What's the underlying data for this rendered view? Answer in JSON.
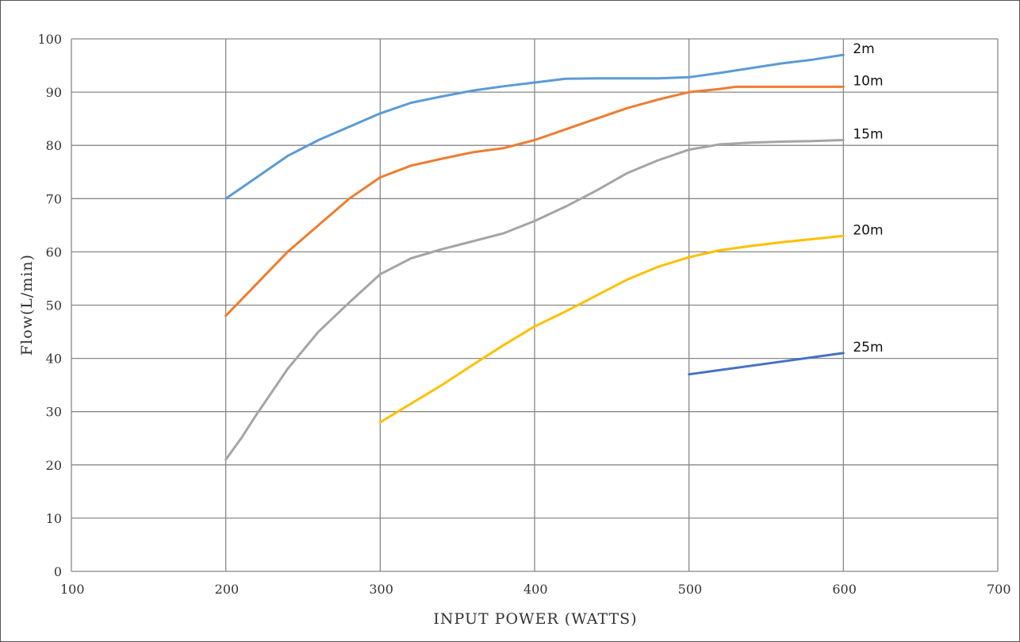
{
  "chart_data": {
    "type": "line",
    "xlabel": "INPUT POWER (WATTS)",
    "ylabel": "Flow(L/min)",
    "xlim": [
      100,
      700
    ],
    "ylim": [
      0,
      100
    ],
    "xticks": [
      100,
      200,
      300,
      400,
      500,
      600,
      700
    ],
    "yticks": [
      0,
      10,
      20,
      30,
      40,
      50,
      60,
      70,
      80,
      90,
      100
    ],
    "grid": true,
    "series": [
      {
        "name": "2m",
        "color": "#5b9bd5",
        "points": [
          [
            200,
            70
          ],
          [
            220,
            74
          ],
          [
            240,
            78
          ],
          [
            260,
            81
          ],
          [
            280,
            83.5
          ],
          [
            300,
            86
          ],
          [
            320,
            88
          ],
          [
            340,
            89.2
          ],
          [
            360,
            90.3
          ],
          [
            380,
            91.1
          ],
          [
            400,
            91.8
          ],
          [
            420,
            92.5
          ],
          [
            440,
            92.6
          ],
          [
            460,
            92.6
          ],
          [
            480,
            92.6
          ],
          [
            500,
            92.8
          ],
          [
            520,
            93.6
          ],
          [
            540,
            94.5
          ],
          [
            560,
            95.4
          ],
          [
            580,
            96.1
          ],
          [
            600,
            97
          ]
        ]
      },
      {
        "name": "10m",
        "color": "#ed7d31",
        "points": [
          [
            200,
            48
          ],
          [
            220,
            54
          ],
          [
            240,
            60
          ],
          [
            260,
            65
          ],
          [
            280,
            70
          ],
          [
            300,
            74
          ],
          [
            320,
            76.2
          ],
          [
            340,
            77.5
          ],
          [
            360,
            78.7
          ],
          [
            380,
            79.5
          ],
          [
            400,
            81
          ],
          [
            420,
            83
          ],
          [
            440,
            85
          ],
          [
            460,
            87
          ],
          [
            480,
            88.6
          ],
          [
            500,
            90
          ],
          [
            520,
            90.6
          ],
          [
            530,
            91
          ],
          [
            560,
            91
          ],
          [
            600,
            91
          ]
        ]
      },
      {
        "name": "15m",
        "color": "#a5a5a5",
        "points": [
          [
            200,
            21
          ],
          [
            210,
            25
          ],
          [
            220,
            29.5
          ],
          [
            240,
            38
          ],
          [
            260,
            45
          ],
          [
            280,
            50.5
          ],
          [
            300,
            55.8
          ],
          [
            320,
            58.8
          ],
          [
            340,
            60.5
          ],
          [
            360,
            62
          ],
          [
            380,
            63.5
          ],
          [
            400,
            65.8
          ],
          [
            420,
            68.5
          ],
          [
            440,
            71.5
          ],
          [
            460,
            74.8
          ],
          [
            480,
            77.2
          ],
          [
            500,
            79.2
          ],
          [
            520,
            80.2
          ],
          [
            540,
            80.5
          ],
          [
            560,
            80.7
          ],
          [
            580,
            80.8
          ],
          [
            600,
            81
          ]
        ]
      },
      {
        "name": "20m",
        "color": "#ffc000",
        "points": [
          [
            300,
            28
          ],
          [
            320,
            31.5
          ],
          [
            340,
            35
          ],
          [
            360,
            38.8
          ],
          [
            380,
            42.5
          ],
          [
            400,
            46
          ],
          [
            420,
            48.8
          ],
          [
            440,
            51.8
          ],
          [
            460,
            54.8
          ],
          [
            480,
            57.2
          ],
          [
            500,
            59
          ],
          [
            520,
            60.3
          ],
          [
            540,
            61.1
          ],
          [
            560,
            61.8
          ],
          [
            580,
            62.4
          ],
          [
            600,
            63
          ]
        ]
      },
      {
        "name": "25m",
        "color": "#4472c4",
        "points": [
          [
            500,
            37
          ],
          [
            550,
            39
          ],
          [
            600,
            41
          ]
        ]
      }
    ]
  }
}
